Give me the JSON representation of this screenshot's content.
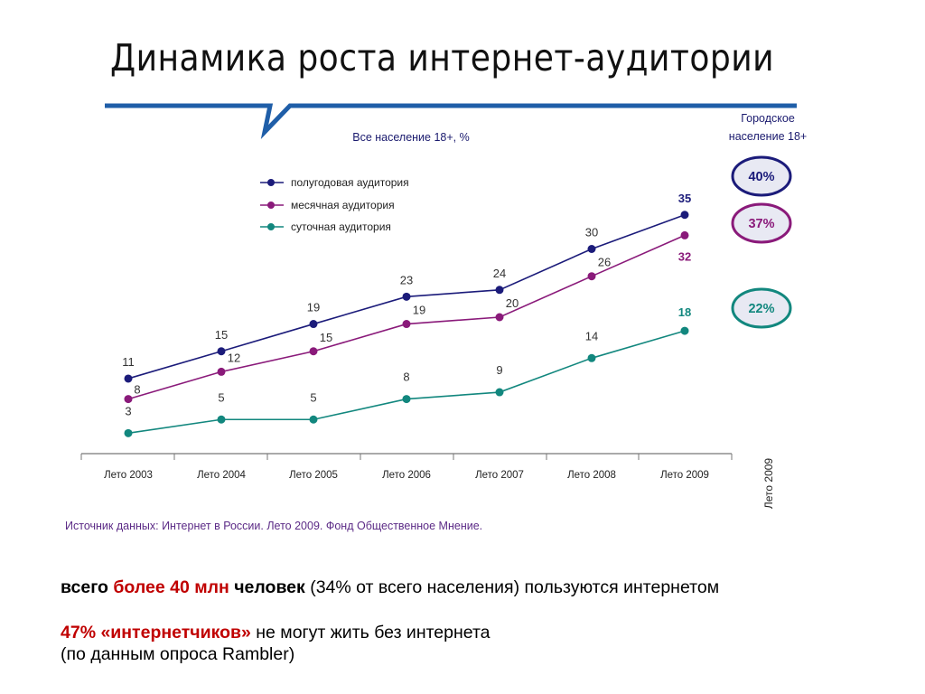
{
  "title": "Динамика роста интернет-аудитории",
  "colors": {
    "accent": "#1f5ea8",
    "series1": "#1b1b7a",
    "series2": "#8a1a7a",
    "series3": "#12877e",
    "source": "#5b2a86",
    "highlight": "#c00000"
  },
  "chart_data": {
    "type": "line",
    "title": "Все население 18+, %",
    "categories": [
      "Лето 2003",
      "Лето 2004",
      "Лето 2005",
      "Лето 2006",
      "Лето 2007",
      "Лето 2008",
      "Лето 2009"
    ],
    "series": [
      {
        "name": "полугодовая аудитория",
        "values": [
          11,
          15,
          19,
          23,
          24,
          30,
          35
        ]
      },
      {
        "name": "месячная аудитория",
        "values": [
          8,
          12,
          15,
          19,
          20,
          26,
          32
        ]
      },
      {
        "name": "суточная аудитория",
        "values": [
          3,
          5,
          5,
          8,
          9,
          14,
          18
        ]
      }
    ],
    "ylim": [
      0,
      40
    ],
    "legend": "top-left",
    "grid": false,
    "side_panel": {
      "header_line1": "Городское",
      "header_line2": "население 18+",
      "values": [
        "40%",
        "37%",
        "22%"
      ],
      "rotated_label": "Лето 2009"
    },
    "source": "Источник данных:   Интернет в России. Лето 2009.   Фонд Общественное Мнение."
  },
  "bottom": {
    "line1_a": "всего ",
    "line1_b": "более 40 млн",
    "line1_c": " человек",
    "line1_d": " (34% от всего населения) пользуются интернетом",
    "line2_a": "47% «интернетчиков»",
    "line2_b": " не могут жить без интернета",
    "line3": "(по данным опроса Rambler)"
  }
}
